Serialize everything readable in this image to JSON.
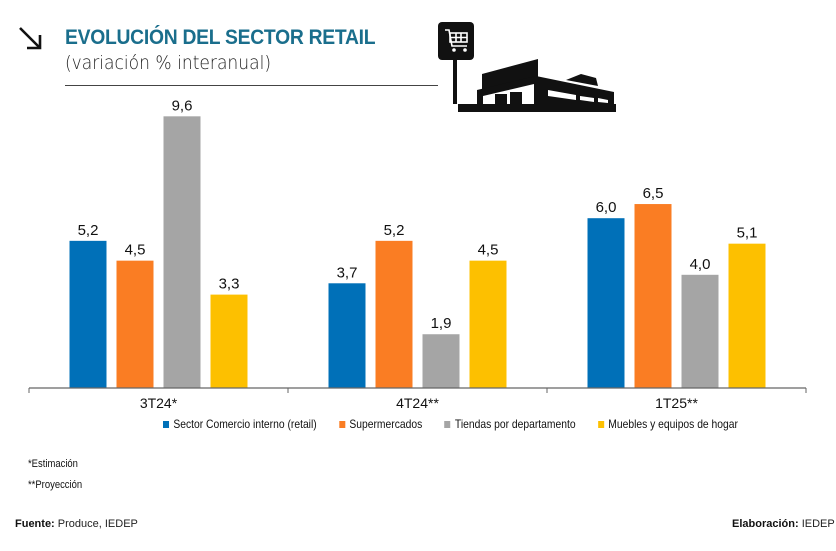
{
  "header": {
    "title": "EVOLUCIÓN DEL SECTOR RETAIL",
    "subtitle": "(variación % interanual)",
    "icons": [
      "arrow-down-right-icon",
      "store-with-cart-sign-icon"
    ]
  },
  "colors": {
    "title": "#1a6e8c",
    "series": [
      "#0070b8",
      "#fa7d23",
      "#a5a5a5",
      "#fdc000"
    ]
  },
  "chart_data": {
    "type": "bar",
    "title": "EVOLUCIÓN DEL SECTOR RETAIL",
    "subtitle": "(variación % interanual)",
    "xlabel": "",
    "ylabel": "",
    "ylim": [
      0,
      10
    ],
    "grid": false,
    "legend_position": "bottom",
    "categories": [
      "3T24*",
      "4T24**",
      "1T25**"
    ],
    "series": [
      {
        "name": "Sector Comercio interno (retail)",
        "values": [
          5.2,
          3.7,
          6.0
        ],
        "labels": [
          "5,2",
          "3,7",
          "6,0"
        ]
      },
      {
        "name": "Supermercados",
        "values": [
          4.5,
          5.2,
          6.5
        ],
        "labels": [
          "4,5",
          "5,2",
          "6,5"
        ]
      },
      {
        "name": "Tiendas por departamento",
        "values": [
          9.6,
          1.9,
          4.0
        ],
        "labels": [
          "9,6",
          "1,9",
          "4,0"
        ]
      },
      {
        "name": "Muebles y equipos de hogar",
        "values": [
          3.3,
          4.5,
          5.1
        ],
        "labels": [
          "3,3",
          "4,5",
          "5,1"
        ]
      }
    ]
  },
  "notes": {
    "estimate": "*Estimación",
    "projection": "**Proyección"
  },
  "footer": {
    "source_label": "Fuente:",
    "source_value": "Produce, IEDEP",
    "credit_label": "Elaboración:",
    "credit_value": "IEDEP"
  }
}
